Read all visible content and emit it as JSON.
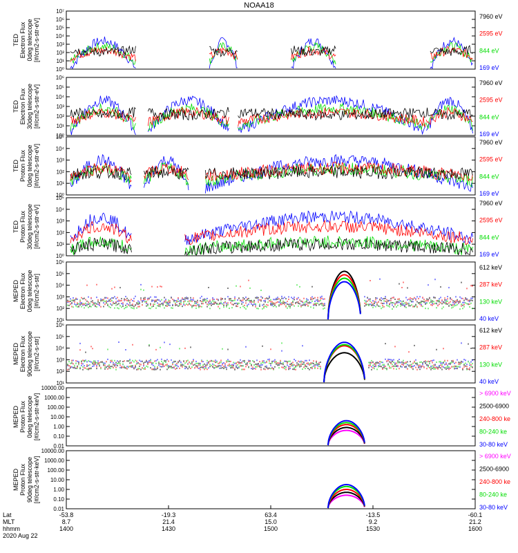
{
  "title": "NOAA18",
  "colors": {
    "blue": "#0000ff",
    "red": "#ff0000",
    "green": "#00dd00",
    "black": "#000000",
    "magenta": "#ff00ff"
  },
  "chart_data": [
    {
      "type": "line",
      "title": "NOAA18",
      "ylabel": [
        "TED",
        "Electron Flux",
        "0deg telescope",
        "[#/cm2-s-str-eV]"
      ],
      "yscale": "log",
      "ylim": [
        1,
        10000000
      ],
      "yticks": [
        "10⁰",
        "10¹",
        "10²",
        "10³",
        "10⁴",
        "10⁵",
        "10⁶",
        "10⁷"
      ],
      "series": [
        {
          "name": "7960 eV",
          "color": "#000000"
        },
        {
          "name": "2595 eV",
          "color": "#ff0000"
        },
        {
          "name": "844 eV",
          "color": "#00dd00"
        },
        {
          "name": "169 eV",
          "color": "#0000ff"
        }
      ],
      "segments": [
        [
          0.01,
          0.17
        ],
        [
          0.35,
          0.42
        ],
        [
          0.55,
          0.66
        ],
        [
          0.89,
          0.995
        ]
      ],
      "peaks": [
        4.8,
        3.5,
        2.6,
        1.9
      ],
      "base": [
        0.1,
        0.9,
        1.4,
        2.4
      ]
    },
    {
      "type": "line",
      "ylabel": [
        "TED",
        "Electron Flux",
        "30deg telescope",
        "[#/cm2-s-str-eV]"
      ],
      "yscale": "log",
      "ylim": [
        1,
        1000000
      ],
      "yticks": [
        "10⁰",
        "10¹",
        "10²",
        "10³",
        "10⁴",
        "10⁵",
        "10⁶"
      ],
      "series": [
        {
          "name": "7960 eV",
          "color": "#000000"
        },
        {
          "name": "2595 eV",
          "color": "#ff0000"
        },
        {
          "name": "844 eV",
          "color": "#00dd00"
        },
        {
          "name": "169 eV",
          "color": "#0000ff"
        }
      ],
      "segments": [
        [
          0.01,
          0.17
        ],
        [
          0.2,
          0.4
        ],
        [
          0.42,
          0.88
        ],
        [
          0.88,
          0.995
        ]
      ],
      "peaks": [
        5,
        3.6,
        2.8,
        2.0
      ],
      "base": [
        0.4,
        0.9,
        1.4,
        2.4
      ]
    },
    {
      "type": "line",
      "ylabel": [
        "TED",
        "Proton Flux",
        "0deg telescope",
        "[#/cm2-s-str-eV]"
      ],
      "yscale": "log",
      "ylim": [
        1,
        100000
      ],
      "yticks": [
        "10⁰",
        "10¹",
        "10²",
        "10³",
        "10⁴",
        "10⁵"
      ],
      "series": [
        {
          "name": "7960 eV",
          "color": "#000000"
        },
        {
          "name": "2595 eV",
          "color": "#ff0000"
        },
        {
          "name": "844 eV",
          "color": "#00dd00"
        },
        {
          "name": "169 eV",
          "color": "#0000ff"
        }
      ],
      "segments": [
        [
          0.01,
          0.16
        ],
        [
          0.19,
          0.3
        ],
        [
          0.34,
          0.995
        ]
      ],
      "peaks": [
        4.0,
        2.7,
        2.6,
        2.0
      ],
      "base": [
        0.6,
        1.2,
        1.6,
        1.8
      ]
    },
    {
      "type": "line",
      "ylabel": [
        "TED",
        "Proton Flux",
        "30deg telescope",
        "[#/cm2-s-str-eV]"
      ],
      "yscale": "log",
      "ylim": [
        1,
        100000
      ],
      "yticks": [
        "10⁰",
        "10¹",
        "10²",
        "10³",
        "10⁴",
        "10⁵"
      ],
      "series": [
        {
          "name": "7960 eV",
          "color": "#000000"
        },
        {
          "name": "2595 eV",
          "color": "#ff0000"
        },
        {
          "name": "844 eV",
          "color": "#00dd00"
        },
        {
          "name": "169 eV",
          "color": "#0000ff"
        }
      ],
      "segments": [
        [
          0.01,
          0.16
        ],
        [
          0.29,
          0.995
        ]
      ],
      "peaks": [
        4.2,
        1.5,
        3.0,
        1.2
      ],
      "base": [
        1.4,
        0.5,
        1.4,
        0.5
      ]
    },
    {
      "type": "line",
      "ylabel": [
        "MEPED",
        "Electron Flux",
        "0deg telescope",
        "[#/cm2-s-str]"
      ],
      "yscale": "log",
      "ylim": [
        10,
        1000000
      ],
      "yticks": [
        "10¹",
        "10²",
        "10³",
        "10⁴",
        "10⁵",
        "10⁶"
      ],
      "series": [
        {
          "name": "612 keV",
          "color": "#000000"
        },
        {
          "name": "287 keV",
          "color": "#ff0000"
        },
        {
          "name": "130 keV",
          "color": "#00dd00"
        },
        {
          "name": "40 keV",
          "color": "#0000ff"
        }
      ],
      "arch": [
        0.64,
        0.72,
        [
          4.2,
          3.9,
          3.6,
          3.3
        ]
      ],
      "base": [
        1.6,
        1.6,
        1.4,
        1.7
      ]
    },
    {
      "type": "line",
      "ylabel": [
        "MEPED",
        "Electron Flux",
        "90deg telescope",
        "[#/cm2-s-str]"
      ],
      "yscale": "log",
      "ylim": [
        10,
        1000000
      ],
      "yticks": [
        "10¹",
        "10²",
        "10³",
        "10⁴",
        "10⁵",
        "10⁶"
      ],
      "series": [
        {
          "name": "612 keV",
          "color": "#000000"
        },
        {
          "name": "287 keV",
          "color": "#ff0000"
        },
        {
          "name": "130 keV",
          "color": "#00dd00"
        },
        {
          "name": "40 keV",
          "color": "#0000ff"
        }
      ],
      "arch": [
        0.63,
        0.73,
        [
          2.6,
          3.2,
          3.3,
          3.5
        ]
      ],
      "base": [
        1.6,
        1.6,
        1.6,
        1.7
      ]
    },
    {
      "type": "line",
      "ylabel": [
        "MEPED",
        "Proton Flux",
        "0deg telescope",
        "[#/cm2-s-str-keV]"
      ],
      "yscale": "log",
      "ylim": [
        0.01,
        10000
      ],
      "yticks": [
        "0.01",
        "0.10",
        "1.00",
        "10.00",
        "100.00",
        "1000.00",
        "10000.00"
      ],
      "series": [
        {
          "name": "> 6900 keV",
          "color": "#ff00ff"
        },
        {
          "name": "2500-6900",
          "color": "#000000"
        },
        {
          "name": "240-800 ke",
          "color": "#ff0000"
        },
        {
          "name": "80-240 ke",
          "color": "#00dd00"
        },
        {
          "name": "30-80 keV",
          "color": "#0000ff"
        }
      ],
      "arch": [
        0.64,
        0.73,
        [
          1.6,
          1.9,
          2.2,
          2.4,
          2.6
        ]
      ]
    },
    {
      "type": "line",
      "ylabel": [
        "MEPED",
        "Proton Flux",
        "90deg telescope",
        "[#/cm2-s-str-keV]"
      ],
      "yscale": "log",
      "ylim": [
        0.01,
        10000
      ],
      "yticks": [
        "0.01",
        "0.10",
        "1.00",
        "10.00",
        "100.00",
        "1000.00",
        "10000.00"
      ],
      "series": [
        {
          "name": "> 6900 keV",
          "color": "#ff00ff"
        },
        {
          "name": "2500-6900",
          "color": "#000000"
        },
        {
          "name": "240-800 ke",
          "color": "#ff0000"
        },
        {
          "name": "80-240 ke",
          "color": "#00dd00"
        },
        {
          "name": "30-80 keV",
          "color": "#0000ff"
        }
      ],
      "arch": [
        0.64,
        0.73,
        [
          1.4,
          1.7,
          2.0,
          2.3,
          2.5
        ]
      ]
    }
  ],
  "xaxis": {
    "rows": [
      {
        "label": "Lat",
        "values": [
          "-53.8",
          "-19.3",
          "63.4",
          "-13.5",
          "-60.1"
        ]
      },
      {
        "label": "MLT",
        "values": [
          "8.7",
          "21.4",
          "15.0",
          "9.2",
          "21.2"
        ]
      },
      {
        "label": "hhmm",
        "values": [
          "1400",
          "1430",
          "1500",
          "1530",
          "1600"
        ]
      }
    ],
    "date": "2020 Aug 22"
  }
}
